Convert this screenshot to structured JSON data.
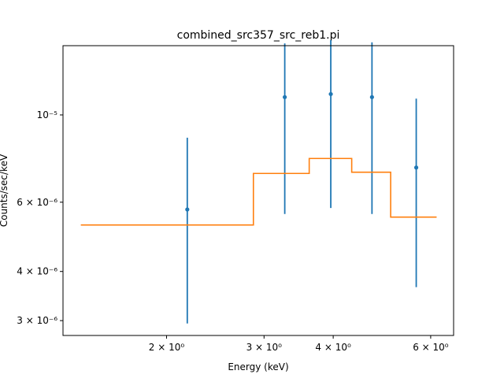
{
  "chart_data": {
    "type": "scatter",
    "title": "combined_src357_src_reb1.pi",
    "xlabel": "Energy (keV)",
    "ylabel": "Counts/sec/keV",
    "xscale": "log",
    "yscale": "log",
    "xlim": [
      1.3,
      6.6
    ],
    "ylim": [
      2.75e-06,
      1.5e-05
    ],
    "grid": false,
    "x_ticks": [
      {
        "value": 2,
        "label": "2 × 10⁰"
      },
      {
        "value": 3,
        "label": "3 × 10⁰"
      },
      {
        "value": 4,
        "label": "4 × 10⁰"
      },
      {
        "value": 6,
        "label": "6 × 10⁰"
      }
    ],
    "y_ticks": [
      {
        "value": 3e-06,
        "label": "3 × 10⁻⁶"
      },
      {
        "value": 4e-06,
        "label": "4 × 10⁻⁶"
      },
      {
        "value": 6e-06,
        "label": "6 × 10⁻⁶"
      },
      {
        "value": 1e-05,
        "label": "10⁻⁵"
      }
    ],
    "series": [
      {
        "kind": "errorbar",
        "color": "#1f77b4",
        "points": [
          {
            "x": 2.18,
            "y": 5.75e-06,
            "ylo": 2.95e-06,
            "yhi": 8.75e-06
          },
          {
            "x": 3.27,
            "y": 1.11e-05,
            "ylo": 5.6e-06,
            "yhi": 1.52e-05
          },
          {
            "x": 3.96,
            "y": 1.13e-05,
            "ylo": 5.8e-06,
            "yhi": 1.55e-05
          },
          {
            "x": 4.7,
            "y": 1.11e-05,
            "ylo": 5.6e-06,
            "yhi": 1.53e-05
          },
          {
            "x": 5.65,
            "y": 7.35e-06,
            "ylo": 3.65e-06,
            "yhi": 1.1e-05
          }
        ]
      },
      {
        "kind": "step",
        "color": "#ff7f0e",
        "segments": [
          {
            "x0": 1.4,
            "x1": 2.87,
            "y": 5.25e-06
          },
          {
            "x0": 2.87,
            "x1": 3.62,
            "y": 7.1e-06
          },
          {
            "x0": 3.62,
            "x1": 4.32,
            "y": 7.75e-06
          },
          {
            "x0": 4.32,
            "x1": 5.08,
            "y": 7.15e-06
          },
          {
            "x0": 5.08,
            "x1": 6.15,
            "y": 5.5e-06
          }
        ]
      }
    ]
  }
}
